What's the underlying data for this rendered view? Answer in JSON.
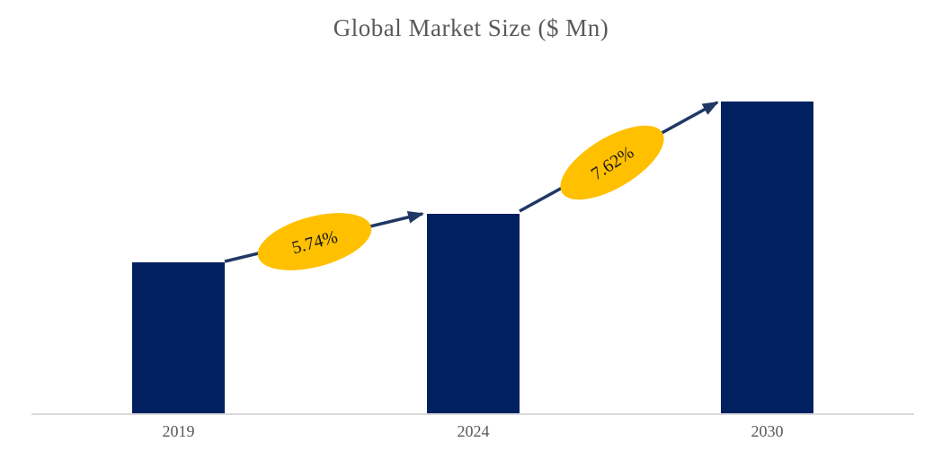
{
  "title": "Global Market Size ($ Mn)",
  "chart_data": {
    "type": "bar",
    "title": "Global Market Size ($ Mn)",
    "categories": [
      "2019",
      "2024",
      "2030"
    ],
    "relative_values": [
      100,
      132,
      206
    ],
    "value_axis_shown": false,
    "data_labels_shown": false,
    "xlabel": "",
    "ylabel": "",
    "gridlines": false,
    "legend": false,
    "annotations": [
      {
        "label": "5.74%",
        "from": "2019",
        "to": "2024",
        "kind": "growth-arrow"
      },
      {
        "label": "7.62%",
        "from": "2024",
        "to": "2030",
        "kind": "growth-arrow"
      }
    ]
  },
  "colors": {
    "bar": "#002060",
    "arrow": "#1f3864",
    "annotation_ellipse": "#ffc000",
    "annotation_text": "#1a1a1a",
    "title_text": "#595959",
    "axis_label_text": "#595959",
    "axis_line": "#d9d9d9",
    "background": "#ffffff"
  }
}
